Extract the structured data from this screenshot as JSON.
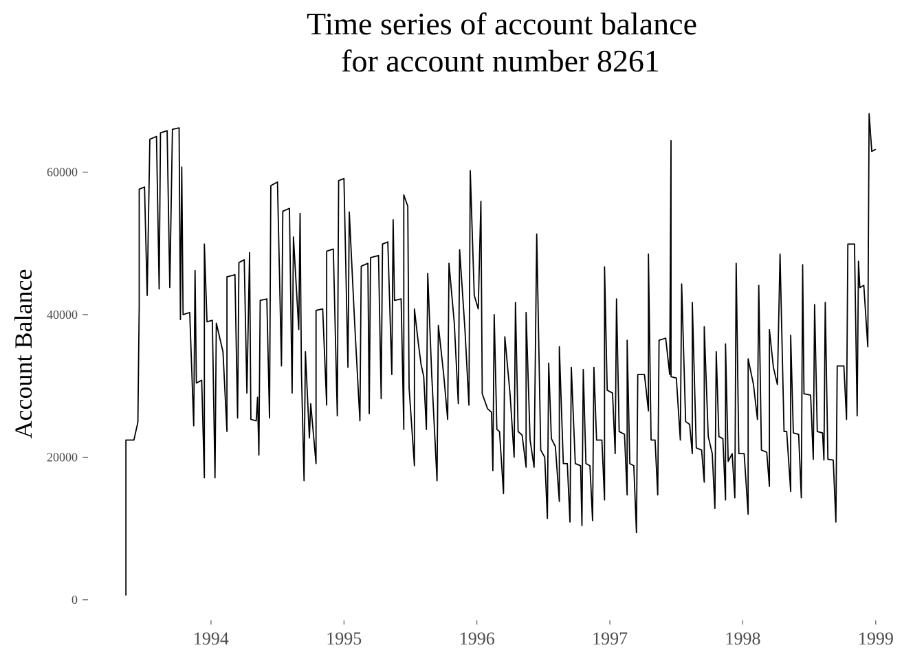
{
  "chart_data": {
    "type": "line",
    "title": [
      "Time series of account balance",
      "for account number 8261"
    ],
    "y_label": "Account Balance",
    "color": "#000000",
    "xlim": [
      1993.08,
      1999.28
    ],
    "xticks": [
      1994,
      1995,
      1996,
      1997,
      1998,
      1999
    ],
    "ylim": [
      -2900,
      71900
    ],
    "yticks": [
      0,
      20000,
      40000,
      60000
    ],
    "grid": false,
    "x": [
      1993.36,
      1993.36,
      1993.42,
      1993.45,
      1993.46,
      1993.46,
      1993.5,
      1993.52,
      1993.54,
      1993.59,
      1993.61,
      1993.62,
      1993.67,
      1993.69,
      1993.71,
      1993.76,
      1993.77,
      1993.78,
      1993.79,
      1993.84,
      1993.87,
      1993.88,
      1993.89,
      1993.93,
      1993.95,
      1993.95,
      1993.97,
      1994.01,
      1994.03,
      1994.04,
      1994.09,
      1994.12,
      1994.12,
      1994.18,
      1994.2,
      1994.21,
      1994.25,
      1994.27,
      1994.29,
      1994.3,
      1994.34,
      1994.35,
      1994.36,
      1994.37,
      1994.42,
      1994.44,
      1994.45,
      1994.5,
      1994.53,
      1994.54,
      1994.59,
      1994.61,
      1994.62,
      1994.66,
      1994.67,
      1994.68,
      1994.7,
      1994.71,
      1994.74,
      1994.75,
      1994.79,
      1994.79,
      1994.84,
      1994.87,
      1994.87,
      1994.92,
      1994.95,
      1994.96,
      1995.0,
      1995.03,
      1995.04,
      1995.08,
      1995.12,
      1995.13,
      1995.18,
      1995.19,
      1995.2,
      1995.26,
      1995.28,
      1995.29,
      1995.33,
      1995.36,
      1995.37,
      1995.38,
      1995.43,
      1995.45,
      1995.45,
      1995.48,
      1995.49,
      1995.53,
      1995.53,
      1995.56,
      1995.58,
      1995.6,
      1995.62,
      1995.63,
      1995.66,
      1995.7,
      1995.71,
      1995.75,
      1995.78,
      1995.79,
      1995.83,
      1995.86,
      1995.87,
      1995.91,
      1995.94,
      1995.95,
      1995.98,
      1996.01,
      1996.03,
      1996.04,
      1996.08,
      1996.11,
      1996.12,
      1996.13,
      1996.15,
      1996.17,
      1996.2,
      1996.21,
      1996.25,
      1996.28,
      1996.29,
      1996.31,
      1996.34,
      1996.37,
      1996.37,
      1996.4,
      1996.43,
      1996.45,
      1996.48,
      1996.51,
      1996.53,
      1996.54,
      1996.56,
      1996.59,
      1996.62,
      1996.62,
      1996.65,
      1996.68,
      1996.7,
      1996.71,
      1996.74,
      1996.78,
      1996.79,
      1996.8,
      1996.82,
      1996.85,
      1996.87,
      1996.88,
      1996.9,
      1996.94,
      1996.96,
      1996.96,
      1996.98,
      1997.02,
      1997.04,
      1997.05,
      1997.07,
      1997.11,
      1997.13,
      1997.13,
      1997.15,
      1997.18,
      1997.2,
      1997.21,
      1997.26,
      1997.29,
      1997.29,
      1997.31,
      1997.34,
      1997.36,
      1997.37,
      1997.42,
      1997.45,
      1997.46,
      1997.46,
      1997.5,
      1997.53,
      1997.54,
      1997.57,
      1997.6,
      1997.62,
      1997.62,
      1997.65,
      1997.69,
      1997.71,
      1997.71,
      1997.74,
      1997.77,
      1997.79,
      1997.8,
      1997.82,
      1997.85,
      1997.87,
      1997.87,
      1997.89,
      1997.92,
      1997.94,
      1997.95,
      1997.97,
      1998.01,
      1998.04,
      1998.04,
      1998.08,
      1998.11,
      1998.12,
      1998.14,
      1998.18,
      1998.2,
      1998.2,
      1998.23,
      1998.26,
      1998.28,
      1998.31,
      1998.33,
      1998.36,
      1998.36,
      1998.38,
      1998.42,
      1998.44,
      1998.45,
      1998.46,
      1998.51,
      1998.53,
      1998.54,
      1998.56,
      1998.6,
      1998.61,
      1998.62,
      1998.64,
      1998.68,
      1998.7,
      1998.71,
      1998.76,
      1998.78,
      1998.79,
      1998.84,
      1998.86,
      1998.87,
      1998.88,
      1998.91,
      1998.94,
      1998.95,
      1998.97,
      1999.0
    ],
    "values": [
      600,
      22400,
      22400,
      24900,
      41200,
      57600,
      57900,
      42700,
      64600,
      65000,
      43600,
      65500,
      65800,
      43800,
      66000,
      66200,
      39300,
      60700,
      40000,
      40300,
      24400,
      46200,
      30400,
      30800,
      17100,
      49900,
      39000,
      39200,
      17100,
      38800,
      34800,
      23600,
      45300,
      45600,
      25500,
      47300,
      47700,
      29000,
      48700,
      25300,
      25100,
      28400,
      20300,
      42000,
      42200,
      25500,
      58100,
      58600,
      32800,
      54500,
      54900,
      29000,
      50900,
      37900,
      54200,
      32100,
      16700,
      34800,
      22700,
      27500,
      19100,
      40600,
      40800,
      27300,
      48900,
      49200,
      25800,
      58800,
      59100,
      32600,
      54400,
      39000,
      25100,
      46800,
      47200,
      26100,
      48000,
      48300,
      28200,
      49900,
      50200,
      31600,
      53300,
      42000,
      42200,
      23900,
      56800,
      55200,
      29700,
      18800,
      40800,
      35900,
      33000,
      31300,
      23900,
      45800,
      31600,
      16700,
      38500,
      31600,
      25300,
      47200,
      38800,
      27500,
      49100,
      37900,
      27300,
      60200,
      42700,
      40800,
      55900,
      28900,
      26800,
      26300,
      18100,
      40000,
      23900,
      23600,
      14900,
      36900,
      28700,
      20000,
      41700,
      23600,
      23100,
      18600,
      40300,
      22400,
      18600,
      51300,
      21000,
      20000,
      11400,
      33200,
      22600,
      21500,
      13800,
      35500,
      19100,
      19100,
      10900,
      32600,
      19100,
      18800,
      10400,
      32300,
      19100,
      18800,
      11100,
      32600,
      22400,
      22400,
      14000,
      46700,
      29400,
      29000,
      20500,
      42200,
      23600,
      23200,
      14700,
      36400,
      19100,
      18800,
      9400,
      31600,
      31600,
      26500,
      48500,
      22400,
      22400,
      14700,
      36400,
      36700,
      31600,
      64400,
      31300,
      31100,
      22400,
      44300,
      25000,
      24600,
      20500,
      41700,
      21300,
      21000,
      16500,
      38300,
      22900,
      20500,
      12800,
      34800,
      22900,
      22600,
      14000,
      35900,
      19400,
      20500,
      14300,
      47200,
      20500,
      20500,
      12000,
      33800,
      30200,
      25300,
      44100,
      21000,
      20700,
      15900,
      37900,
      32600,
      30200,
      48500,
      23600,
      23600,
      15200,
      37100,
      23400,
      23200,
      14300,
      47000,
      28900,
      28700,
      19700,
      41400,
      23600,
      23400,
      19600,
      41700,
      19700,
      19600,
      10900,
      32800,
      32800,
      25300,
      49900,
      49900,
      25800,
      47500,
      43800,
      44100,
      35500,
      68200,
      62900,
      63200
    ]
  }
}
